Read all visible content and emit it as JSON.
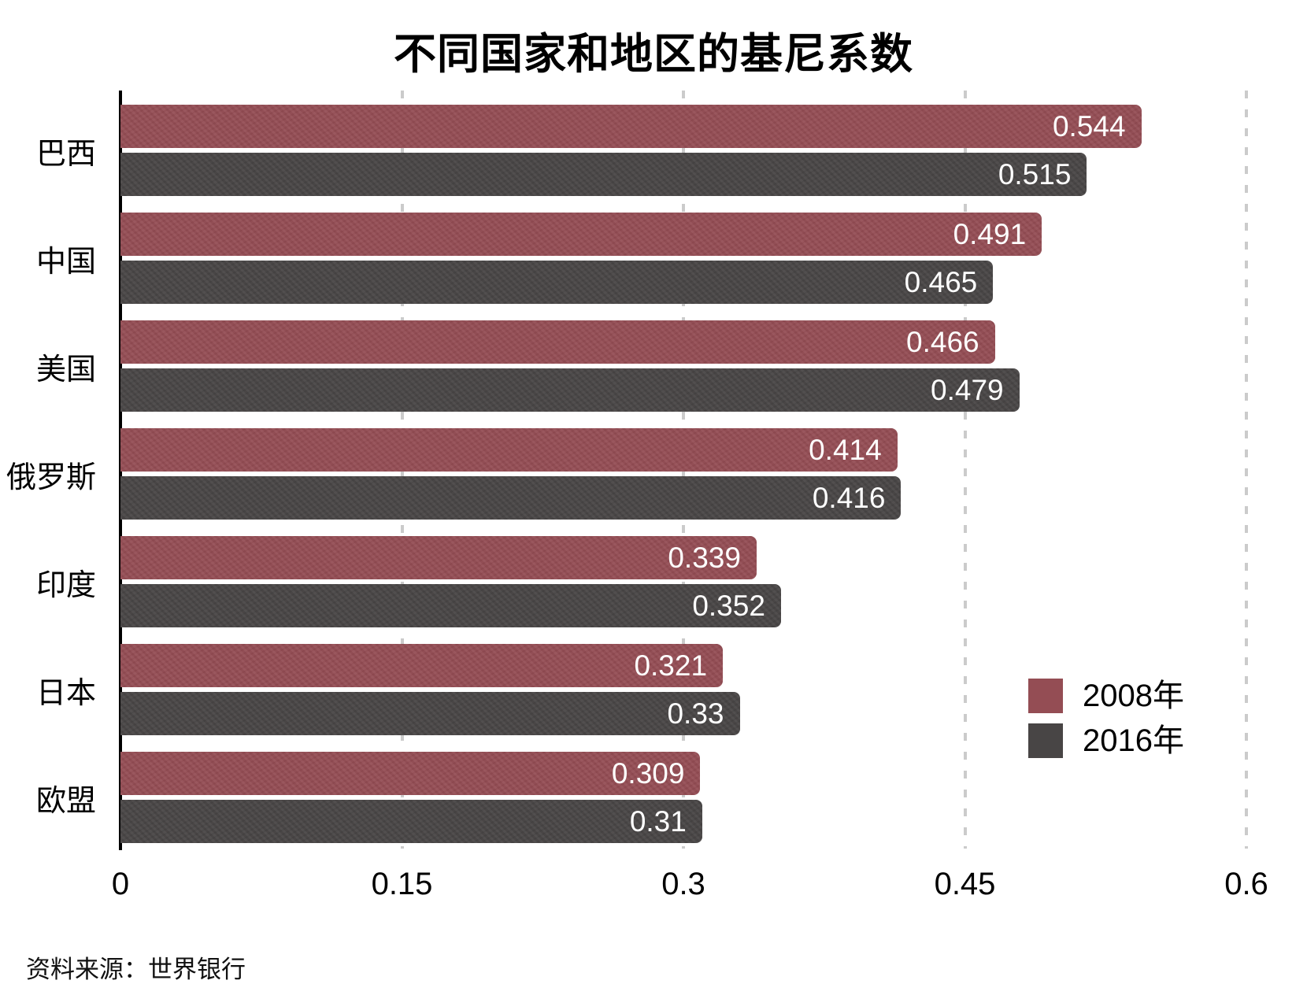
{
  "page": {
    "title": "不同国家和地区的基尼系数",
    "source_note": "资料来源：世界银行"
  },
  "chart_data": {
    "type": "bar",
    "orientation": "horizontal",
    "title": "不同国家和地区的基尼系数",
    "categories": [
      "巴西",
      "中国",
      "美国",
      "俄罗斯",
      "印度",
      "日本",
      "欧盟"
    ],
    "series": [
      {
        "name": "2008年",
        "color": "#944d54",
        "values": [
          0.544,
          0.491,
          0.466,
          0.414,
          0.339,
          0.321,
          0.309
        ]
      },
      {
        "name": "2016年",
        "color": "#484545",
        "values": [
          0.515,
          0.465,
          0.479,
          0.416,
          0.352,
          0.33,
          0.31
        ]
      }
    ],
    "xlim": [
      0,
      0.6
    ],
    "x_tick_labels": [
      "0",
      "0.15",
      "0.3",
      "0.45",
      "0.6"
    ],
    "grid": "dashed-vertical",
    "legend_position": "right-middle",
    "value_labels": "inside-end",
    "colors": {
      "axis_line": "#000000",
      "gridline": "#cbcbcb",
      "value_label_text": "#ffffff",
      "title_text": "#000000",
      "tick_label_text": "#000000"
    }
  }
}
